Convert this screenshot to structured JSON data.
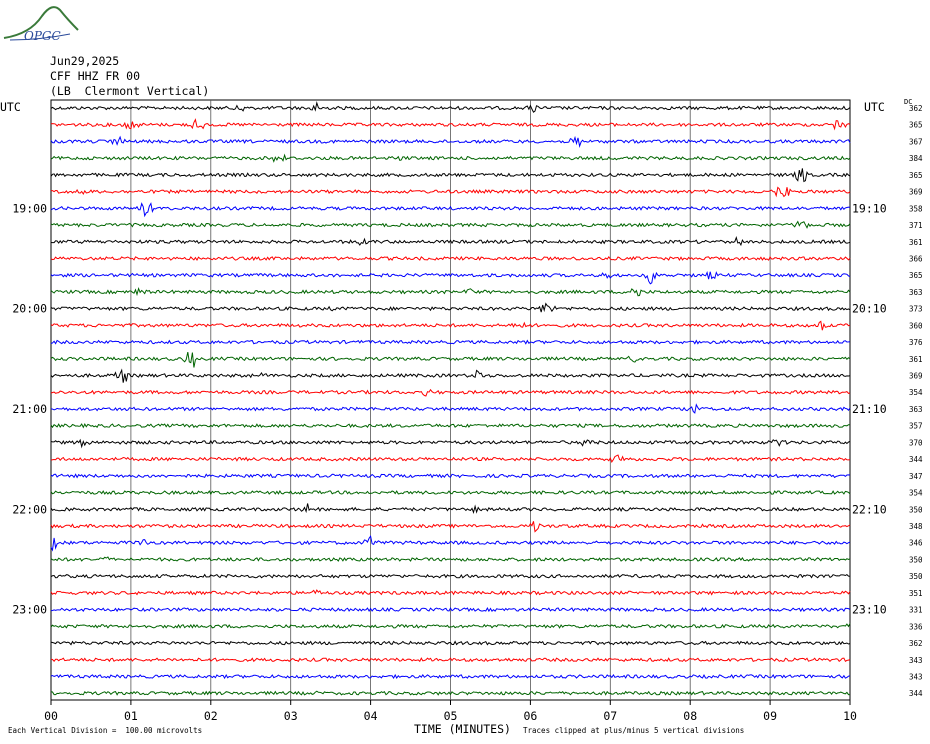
{
  "logo": {
    "text": "OPGC"
  },
  "header": {
    "date": "Jun29,2025",
    "station": "CFF HHZ FR 00",
    "location": "(LB  Clermont Vertical)"
  },
  "left_axis_title": "UTC",
  "right_axis_title": "UTC",
  "dc_label": "DC",
  "footnote_left": "Each Vertical Division =  100.00 microvolts",
  "footnote_right": "Traces clipped at plus/minus 5 vertical divisions",
  "chart_data": {
    "type": "line",
    "title": "",
    "xlabel": "TIME (MINUTES)",
    "xlim": [
      0,
      10
    ],
    "x_ticks": [
      "00",
      "01",
      "02",
      "03",
      "04",
      "05",
      "06",
      "07",
      "08",
      "09",
      "10"
    ],
    "trace_colors": [
      "#000000",
      "#ff0000",
      "#0000ff",
      "#006400"
    ],
    "left_time_labels": [
      {
        "row": 6,
        "label": "19:00"
      },
      {
        "row": 12,
        "label": "20:00"
      },
      {
        "row": 18,
        "label": "21:00"
      },
      {
        "row": 24,
        "label": "22:00"
      },
      {
        "row": 30,
        "label": "23:00"
      }
    ],
    "right_time_labels": [
      {
        "row": 6,
        "label": "19:10"
      },
      {
        "row": 12,
        "label": "20:10"
      },
      {
        "row": 18,
        "label": "21:10"
      },
      {
        "row": 24,
        "label": "22:10"
      },
      {
        "row": 30,
        "label": "23:10"
      }
    ],
    "dc_offsets": [
      "362",
      "365",
      "367",
      "384",
      "365",
      "369",
      "358",
      "371",
      "361",
      "366",
      "365",
      "363",
      "373",
      "360",
      "376",
      "361",
      "369",
      "354",
      "363",
      "357",
      "370",
      "344",
      "347",
      "354",
      "350",
      "348",
      "346",
      "350",
      "350",
      "351",
      "331",
      "336",
      "362",
      "343",
      "343",
      "344"
    ],
    "events": [
      {
        "row": 0,
        "minute": 2.4,
        "amp": 0.6
      },
      {
        "row": 0,
        "minute": 3.3,
        "amp": 0.9
      },
      {
        "row": 0,
        "minute": 6.05,
        "amp": 0.6
      },
      {
        "row": 1,
        "minute": 1.0,
        "amp": 0.8
      },
      {
        "row": 1,
        "minute": 1.85,
        "amp": 1.0
      },
      {
        "row": 1,
        "minute": 9.85,
        "amp": 0.9
      },
      {
        "row": 2,
        "minute": 0.85,
        "amp": 0.7
      },
      {
        "row": 2,
        "minute": 6.6,
        "amp": 1.0
      },
      {
        "row": 3,
        "minute": 2.85,
        "amp": 0.7
      },
      {
        "row": 3,
        "minute": 4.35,
        "amp": 0.4
      },
      {
        "row": 4,
        "minute": 9.4,
        "amp": 1.2
      },
      {
        "row": 5,
        "minute": 0.35,
        "amp": 0.5
      },
      {
        "row": 5,
        "minute": 9.15,
        "amp": 1.2
      },
      {
        "row": 6,
        "minute": 1.2,
        "amp": 1.2
      },
      {
        "row": 7,
        "minute": 9.4,
        "amp": 0.7
      },
      {
        "row": 8,
        "minute": 3.9,
        "amp": 0.4
      },
      {
        "row": 8,
        "minute": 8.6,
        "amp": 0.5
      },
      {
        "row": 10,
        "minute": 7.0,
        "amp": 0.6
      },
      {
        "row": 10,
        "minute": 7.5,
        "amp": 1.2
      },
      {
        "row": 10,
        "minute": 8.25,
        "amp": 0.6
      },
      {
        "row": 11,
        "minute": 1.1,
        "amp": 0.6
      },
      {
        "row": 11,
        "minute": 5.2,
        "amp": 0.6
      },
      {
        "row": 11,
        "minute": 7.3,
        "amp": 1.0
      },
      {
        "row": 12,
        "minute": 3.45,
        "amp": 0.5
      },
      {
        "row": 12,
        "minute": 6.2,
        "amp": 1.2
      },
      {
        "row": 13,
        "minute": 5.85,
        "amp": 0.6
      },
      {
        "row": 13,
        "minute": 9.65,
        "amp": 1.0
      },
      {
        "row": 15,
        "minute": 1.75,
        "amp": 1.5
      },
      {
        "row": 15,
        "minute": 7.3,
        "amp": 0.5
      },
      {
        "row": 16,
        "minute": 0.9,
        "amp": 1.0
      },
      {
        "row": 16,
        "minute": 2.6,
        "amp": 0.5
      },
      {
        "row": 16,
        "minute": 5.35,
        "amp": 0.9
      },
      {
        "row": 17,
        "minute": 4.7,
        "amp": 0.5
      },
      {
        "row": 18,
        "minute": 8.05,
        "amp": 0.8
      },
      {
        "row": 20,
        "minute": 0.4,
        "amp": 0.6
      },
      {
        "row": 20,
        "minute": 6.7,
        "amp": 0.5
      },
      {
        "row": 20,
        "minute": 9.1,
        "amp": 0.7
      },
      {
        "row": 21,
        "minute": 7.1,
        "amp": 0.6
      },
      {
        "row": 24,
        "minute": 3.2,
        "amp": 0.7
      },
      {
        "row": 24,
        "minute": 5.3,
        "amp": 0.5
      },
      {
        "row": 25,
        "minute": 6.05,
        "amp": 0.7
      },
      {
        "row": 26,
        "minute": 0.02,
        "amp": 1.2
      },
      {
        "row": 26,
        "minute": 1.2,
        "amp": 0.5
      },
      {
        "row": 26,
        "minute": 4.0,
        "amp": 0.9
      },
      {
        "row": 27,
        "minute": 0.65,
        "amp": 0.4
      },
      {
        "row": 29,
        "minute": 3.3,
        "amp": 0.4
      },
      {
        "row": 31,
        "minute": 9.95,
        "amp": 0.6
      },
      {
        "row": 35,
        "minute": 3.4,
        "amp": 0.4
      }
    ]
  }
}
